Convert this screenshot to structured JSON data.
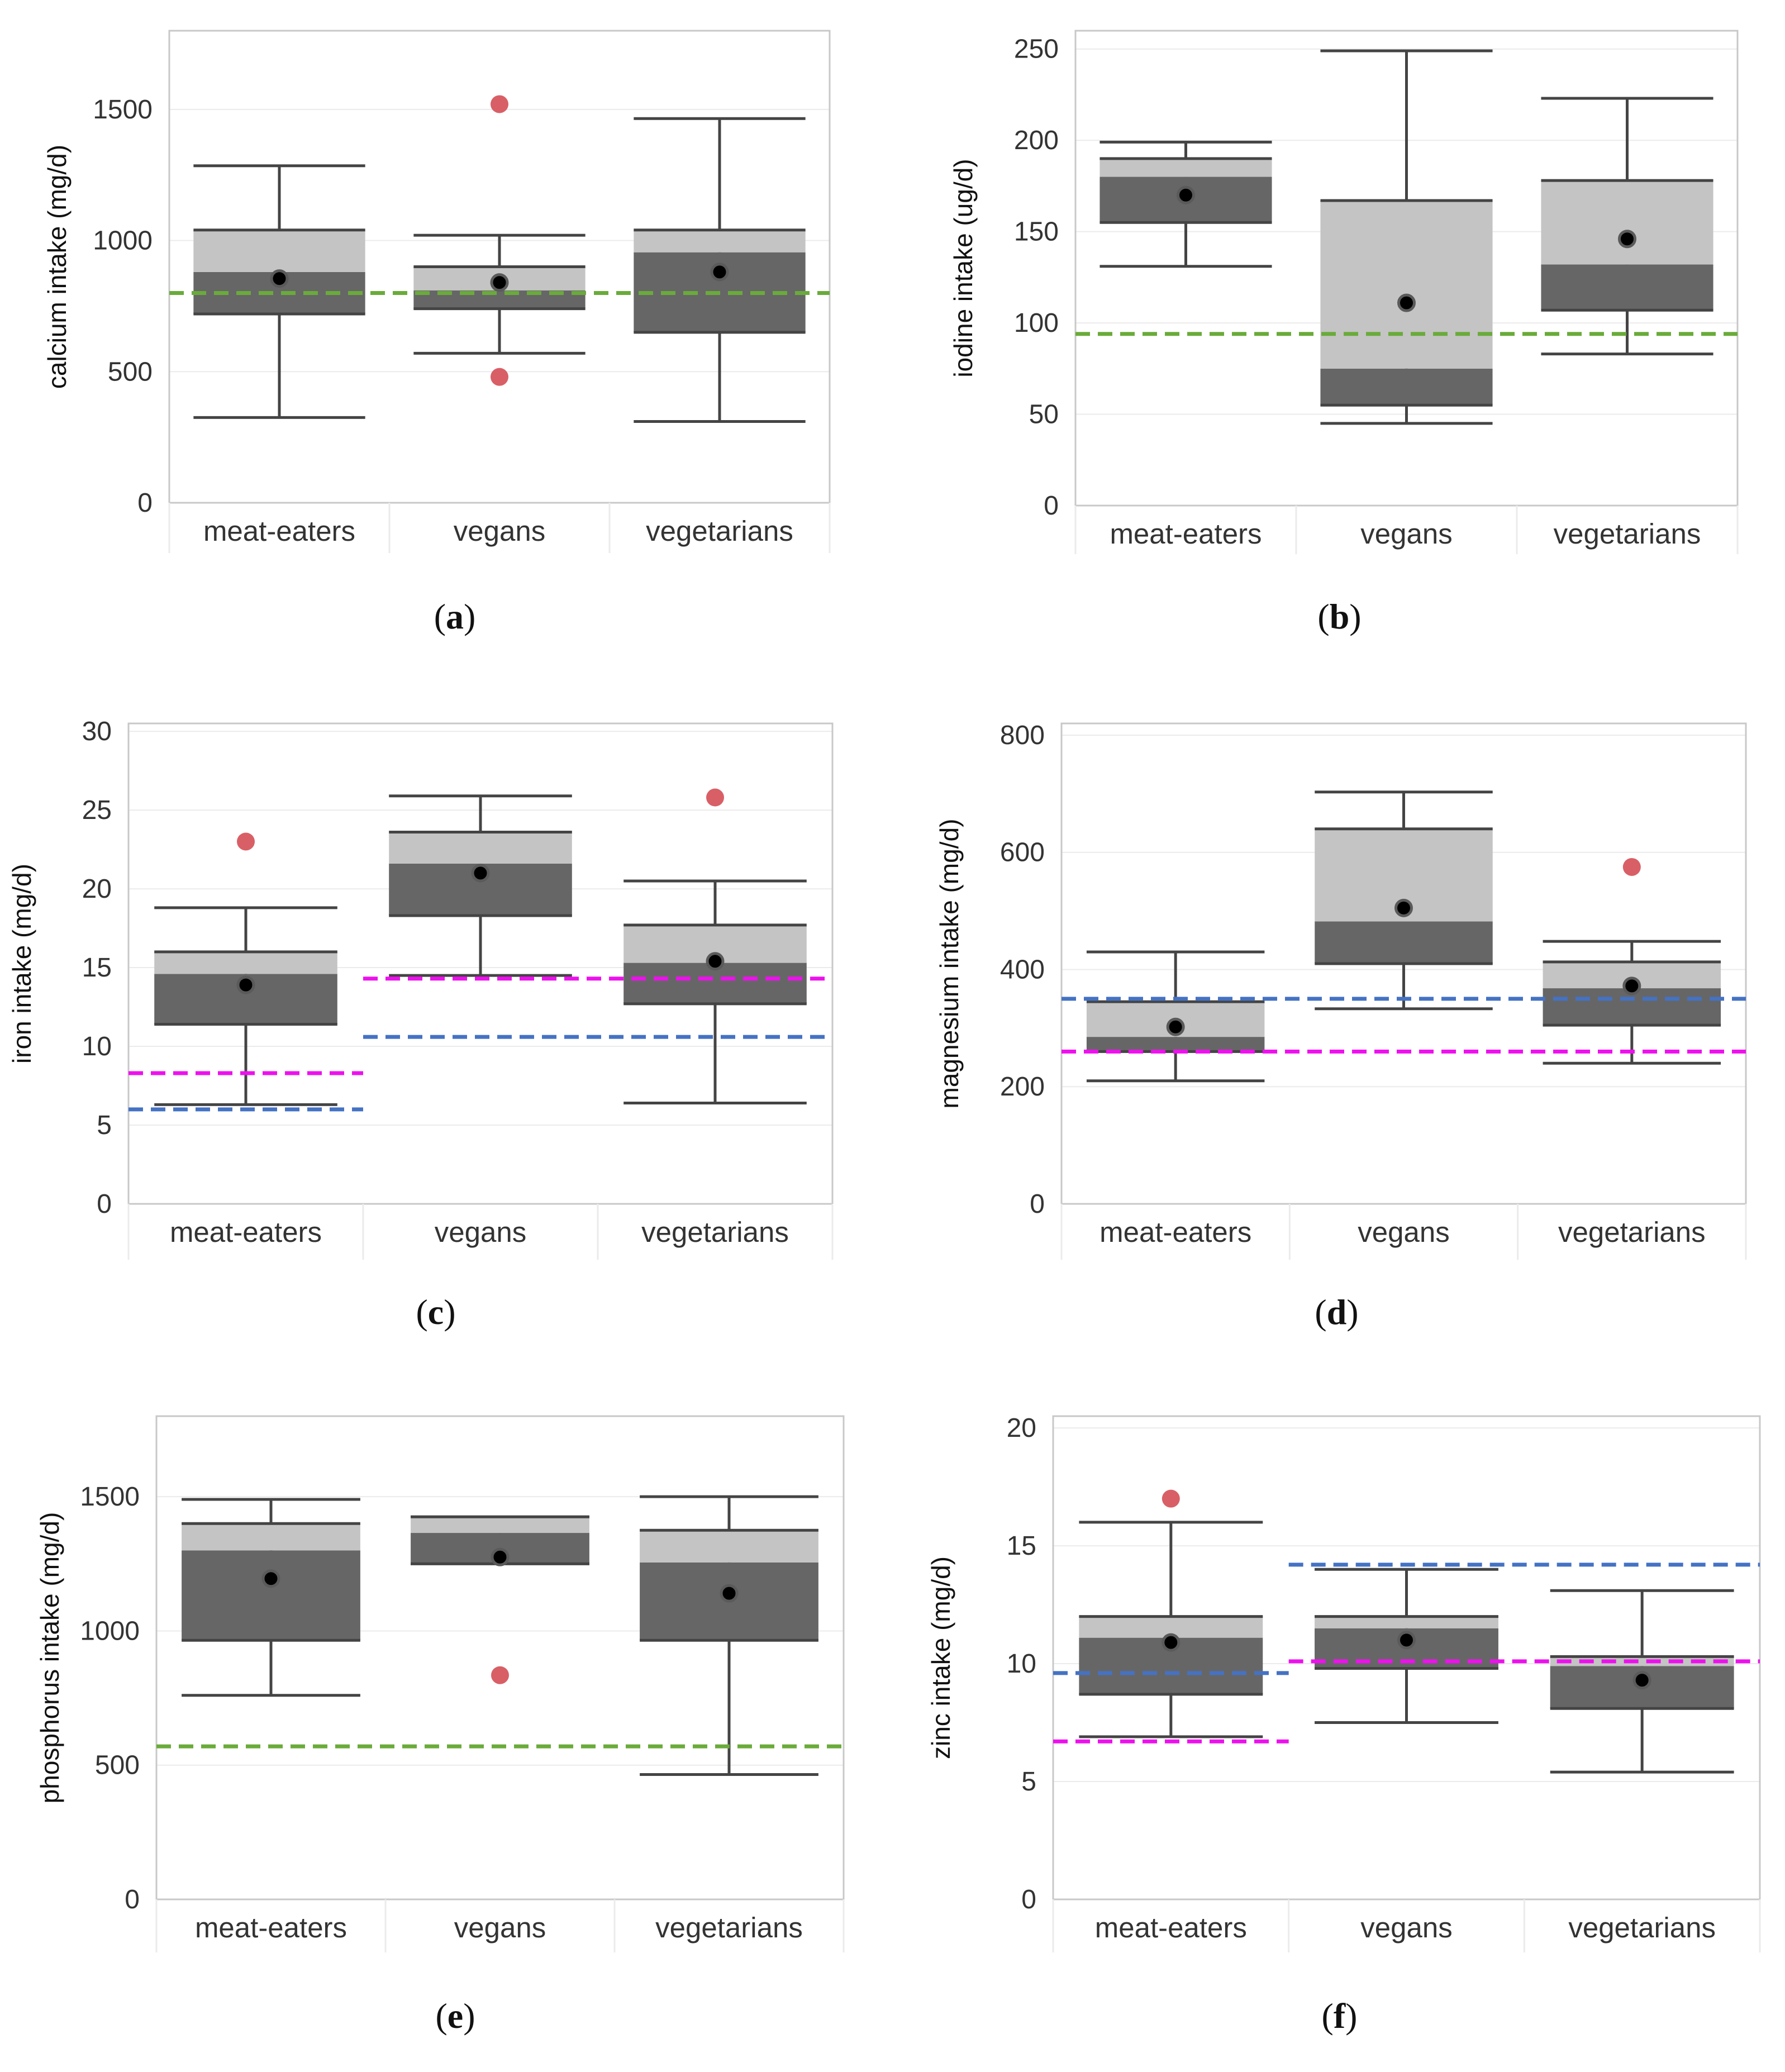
{
  "style": {
    "q_light": "#c4c4c4",
    "q_dark": "#666666",
    "whisker": "#444444",
    "mean": "#000000",
    "outlier": "#d95f66",
    "green": "#6aab3a",
    "blue": "#4472c4",
    "magenta": "#ee10ee",
    "grid": "#ebebeb",
    "frame": "#c8c8c8"
  },
  "chart_data": [
    {
      "id": "a",
      "caption_letter": "a",
      "type": "box",
      "ylabel": "calcium intake (mg/d)",
      "ylim": [
        0,
        1800
      ],
      "yticks": [
        0,
        500,
        1000,
        1500
      ],
      "categories": [
        "meat-eaters",
        "vegans",
        "vegetarians"
      ],
      "boxes": [
        {
          "min": 325,
          "q1": 720,
          "median": 880,
          "q3": 1040,
          "max": 1285,
          "mean": 855,
          "outliers": []
        },
        {
          "min": 570,
          "q1": 740,
          "median": 810,
          "q3": 900,
          "max": 1020,
          "mean": 840,
          "outliers": [
            1520,
            480
          ]
        },
        {
          "min": 310,
          "q1": 650,
          "median": 955,
          "q3": 1040,
          "max": 1465,
          "mean": 880,
          "outliers": []
        }
      ],
      "reference_lines": [
        {
          "color": "green",
          "value": 800,
          "span": "all"
        }
      ]
    },
    {
      "id": "b",
      "caption_letter": "b",
      "type": "box",
      "ylabel": "iodine intake (ug/d)",
      "ylim": [
        0,
        260
      ],
      "yticks": [
        0,
        50,
        100,
        150,
        200,
        250
      ],
      "categories": [
        "meat-eaters",
        "vegans",
        "vegetarians"
      ],
      "boxes": [
        {
          "min": 131,
          "q1": 155,
          "median": 180,
          "q3": 190,
          "max": 199,
          "mean": 170,
          "outliers": []
        },
        {
          "min": 45,
          "q1": 55,
          "median": 75,
          "q3": 167,
          "max": 249,
          "mean": 111,
          "outliers": []
        },
        {
          "min": 83,
          "q1": 107,
          "median": 132,
          "q3": 178,
          "max": 223,
          "mean": 146,
          "outliers": []
        }
      ],
      "reference_lines": [
        {
          "color": "green",
          "value": 94,
          "span": "all"
        }
      ]
    },
    {
      "id": "c",
      "caption_letter": "c",
      "type": "box",
      "ylabel": "iron intake (mg/d)",
      "ylim": [
        0,
        30.5
      ],
      "yticks": [
        0,
        5,
        10,
        15,
        20,
        25,
        30
      ],
      "categories": [
        "meat-eaters",
        "vegans",
        "vegetarians"
      ],
      "boxes": [
        {
          "min": 6.3,
          "q1": 11.4,
          "median": 14.6,
          "q3": 16.0,
          "max": 18.8,
          "mean": 13.9,
          "outliers": [
            23
          ]
        },
        {
          "min": 14.5,
          "q1": 18.3,
          "median": 21.6,
          "q3": 23.6,
          "max": 25.9,
          "mean": 21.0,
          "outliers": []
        },
        {
          "min": 6.4,
          "q1": 12.7,
          "median": 15.3,
          "q3": 17.7,
          "max": 20.5,
          "mean": 15.4,
          "outliers": [
            25.8
          ]
        }
      ],
      "reference_lines": [
        {
          "color": "magenta",
          "value": 8.3,
          "span": "meat-eaters"
        },
        {
          "color": "blue",
          "value": 6.0,
          "span": "meat-eaters"
        },
        {
          "color": "magenta",
          "value": 14.3,
          "span": "vegans-vegetarians"
        },
        {
          "color": "blue",
          "value": 10.6,
          "span": "vegans-vegetarians"
        }
      ]
    },
    {
      "id": "d",
      "caption_letter": "d",
      "type": "box",
      "ylabel": "magnesium intake (mg/d)",
      "ylim": [
        0,
        820
      ],
      "yticks": [
        0,
        200,
        400,
        600,
        800
      ],
      "categories": [
        "meat-eaters",
        "vegans",
        "vegetarians"
      ],
      "boxes": [
        {
          "min": 210,
          "q1": 260,
          "median": 285,
          "q3": 345,
          "max": 430,
          "mean": 302,
          "outliers": []
        },
        {
          "min": 333,
          "q1": 410,
          "median": 482,
          "q3": 640,
          "max": 703,
          "mean": 505,
          "outliers": []
        },
        {
          "min": 240,
          "q1": 305,
          "median": 368,
          "q3": 413,
          "max": 448,
          "mean": 372,
          "outliers": [
            575
          ]
        }
      ],
      "reference_lines": [
        {
          "color": "blue",
          "value": 350,
          "span": "all"
        },
        {
          "color": "magenta",
          "value": 260,
          "span": "all"
        }
      ]
    },
    {
      "id": "e",
      "caption_letter": "e",
      "type": "box",
      "ylabel": "phosphorus intake (mg/d)",
      "ylim": [
        0,
        1800
      ],
      "yticks": [
        0,
        500,
        1000,
        1500
      ],
      "categories": [
        "meat-eaters",
        "vegans",
        "vegetarians"
      ],
      "boxes": [
        {
          "min": 760,
          "q1": 965,
          "median": 1300,
          "q3": 1400,
          "max": 1490,
          "mean": 1195,
          "outliers": []
        },
        {
          "min": 1250,
          "q1": 1250,
          "median": 1365,
          "q3": 1425,
          "max": 1425,
          "mean": 1275,
          "outliers": [
            835
          ]
        },
        {
          "min": 465,
          "q1": 965,
          "median": 1255,
          "q3": 1375,
          "max": 1500,
          "mean": 1140,
          "outliers": []
        }
      ],
      "reference_lines": [
        {
          "color": "green",
          "value": 570,
          "span": "all"
        }
      ]
    },
    {
      "id": "f",
      "caption_letter": "f",
      "type": "box",
      "ylabel": "zinc intake (mg/d)",
      "ylim": [
        0,
        20.5
      ],
      "yticks": [
        0,
        5,
        10,
        15,
        20
      ],
      "categories": [
        "meat-eaters",
        "vegans",
        "vegetarians"
      ],
      "boxes": [
        {
          "min": 6.9,
          "q1": 8.7,
          "median": 11.1,
          "q3": 12.0,
          "max": 16.0,
          "mean": 10.9,
          "outliers": [
            17.0
          ]
        },
        {
          "min": 7.5,
          "q1": 9.8,
          "median": 11.5,
          "q3": 12.0,
          "max": 14.0,
          "mean": 11.0,
          "outliers": []
        },
        {
          "min": 5.4,
          "q1": 8.1,
          "median": 9.9,
          "q3": 10.3,
          "max": 13.1,
          "mean": 9.3,
          "outliers": []
        }
      ],
      "reference_lines": [
        {
          "color": "blue",
          "value": 9.6,
          "span": "meat-eaters"
        },
        {
          "color": "magenta",
          "value": 6.7,
          "span": "meat-eaters"
        },
        {
          "color": "blue",
          "value": 14.2,
          "span": "vegans-vegetarians"
        },
        {
          "color": "magenta",
          "value": 10.1,
          "span": "vegans-vegetarians"
        }
      ]
    }
  ]
}
